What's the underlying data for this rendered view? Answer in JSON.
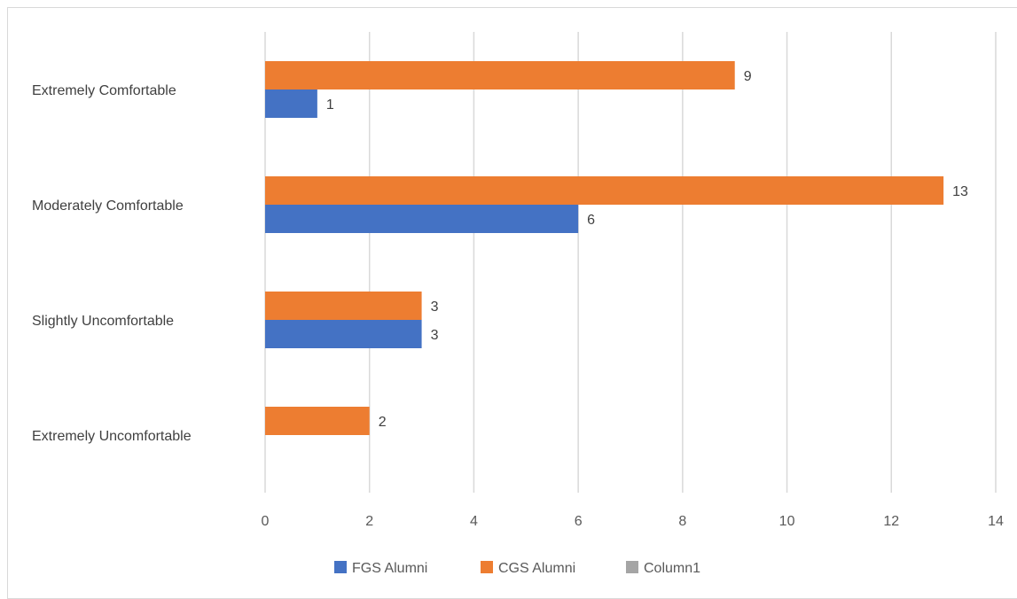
{
  "chart_data": {
    "type": "bar",
    "orientation": "horizontal",
    "categories": [
      "Extremely Uncomfortable",
      "Slightly Uncomfortable",
      "Moderately Comfortable",
      "Extremely  Comfortable"
    ],
    "series": [
      {
        "name": "FGS Alumni",
        "color": "#4472c4",
        "values": [
          null,
          3,
          6,
          1
        ]
      },
      {
        "name": "CGS Alumni",
        "color": "#ed7d31",
        "values": [
          2,
          3,
          13,
          9
        ]
      },
      {
        "name": "Column1",
        "color": "#a5a5a5",
        "values": [
          null,
          null,
          null,
          null
        ]
      }
    ],
    "xlim": [
      0,
      14
    ],
    "x_ticks": [
      "0",
      "2",
      "4",
      "6",
      "8",
      "10",
      "12",
      "14"
    ],
    "grid": "vertical",
    "legend": "bottom"
  }
}
